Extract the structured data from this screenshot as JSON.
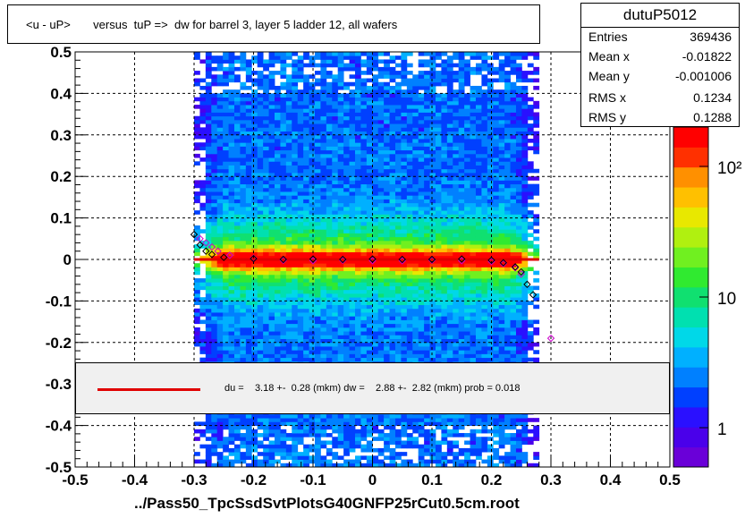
{
  "title": "<u - uP>       versus  tuP =>  dw for barrel 3, layer 5 ladder 12, all wafers",
  "stats": {
    "name": "dutuP5012",
    "rows": [
      {
        "label": "Entries",
        "value": "369436"
      },
      {
        "label": "Mean x",
        "value": "-0.01822"
      },
      {
        "label": "Mean y",
        "value": "-0.001006"
      },
      {
        "label": "RMS x",
        "value": "0.1234"
      },
      {
        "label": "RMS y",
        "value": "0.1288"
      }
    ]
  },
  "fit_text": "du =    3.18 +-  0.28 (mkm) dw =    2.88 +-  2.82 (mkm) prob = 0.018",
  "xtitle": "../Pass50_TpcSsdSvtPlotsG40GNFP25rCut0.5cm.root",
  "colors": {
    "fit_line": "#e00000",
    "profile_black": "#000000",
    "profile_magenta": "#cc00cc"
  },
  "chart_data": {
    "type": "heatmap",
    "xlim": [
      -0.5,
      0.5
    ],
    "ylim": [
      -0.5,
      0.5
    ],
    "x_ticks": [
      "-0.5",
      "-0.4",
      "-0.3",
      "-0.2",
      "-0.1",
      "0",
      "0.1",
      "0.2",
      "0.3",
      "0.4",
      "0.5"
    ],
    "y_ticks": [
      "-0.5",
      "-0.4",
      "-0.3",
      "-0.2",
      "-0.1",
      "0",
      "0.1",
      "0.2",
      "0.3",
      "0.4",
      "0.5"
    ],
    "grid": true,
    "z_scale": "log",
    "z_ticks": [
      "1",
      "10",
      "10²"
    ],
    "data_extent_x": [
      -0.3,
      0.28
    ],
    "fit_line": {
      "x": [
        -0.3,
        0.28
      ],
      "y": [
        0,
        0
      ]
    },
    "profile_black": {
      "x": [
        -0.3,
        -0.29,
        -0.28,
        -0.27,
        -0.25,
        -0.2,
        -0.15,
        -0.1,
        -0.05,
        0,
        0.05,
        0.1,
        0.15,
        0.2,
        0.22,
        0.24,
        0.25,
        0.26,
        0.27
      ],
      "y": [
        0.06,
        0.035,
        0.02,
        0.012,
        0.005,
        0.002,
        0.0,
        0.001,
        0.0,
        0.001,
        0.0,
        0.0,
        0.001,
        -0.002,
        -0.008,
        -0.018,
        -0.03,
        -0.06,
        -0.085
      ]
    },
    "profile_magenta": {
      "x": [
        -0.29,
        -0.28,
        -0.27,
        -0.26,
        -0.24,
        -0.2,
        -0.15,
        -0.1,
        -0.05,
        0,
        0.05,
        0.1,
        0.15,
        0.2,
        0.22,
        0.24,
        0.25,
        0.3
      ],
      "y": [
        0.05,
        0.04,
        0.03,
        0.02,
        0.01,
        0.003,
        -0.002,
        -0.003,
        -0.002,
        -0.003,
        -0.003,
        -0.002,
        -0.003,
        -0.005,
        -0.01,
        -0.02,
        -0.035,
        -0.19
      ]
    }
  }
}
